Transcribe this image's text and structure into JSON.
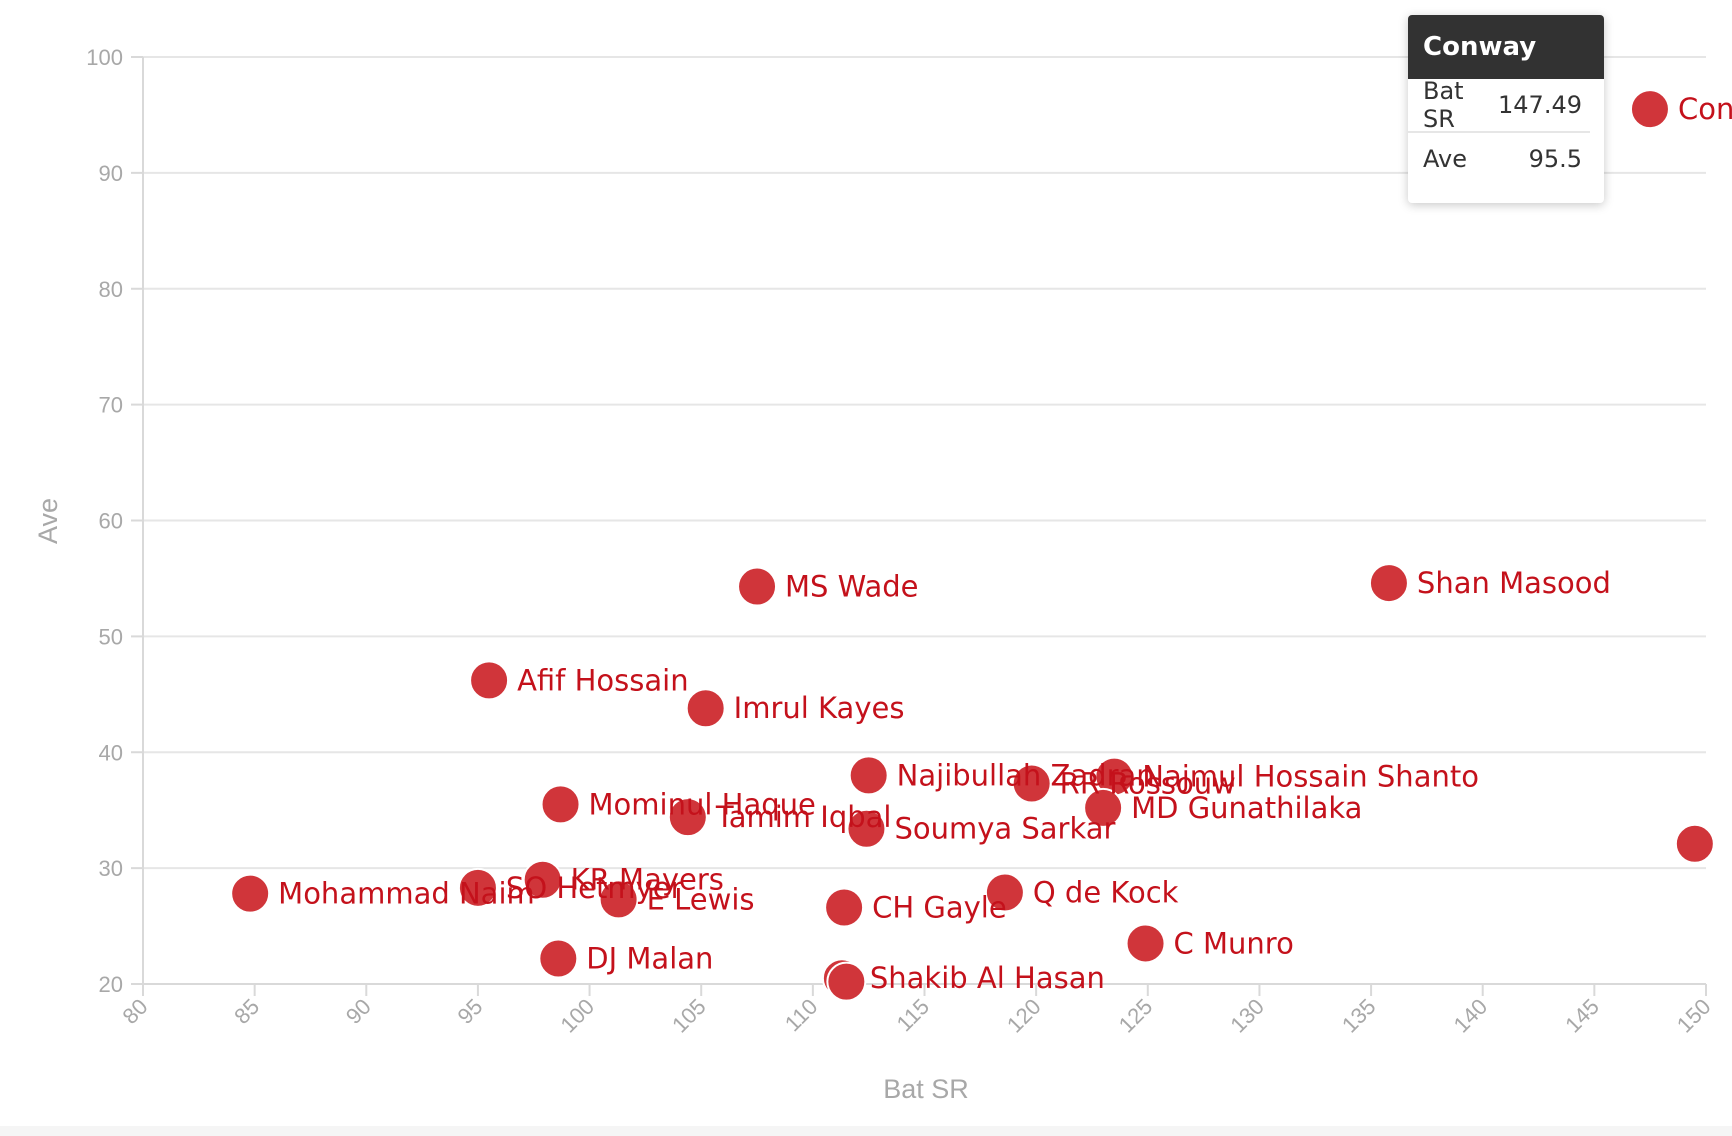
{
  "chart_data": {
    "type": "scatter",
    "xlabel": "Bat SR",
    "ylabel": "Ave",
    "xlim": [
      80,
      150
    ],
    "ylim": [
      20,
      100
    ],
    "xticks": [
      80,
      85,
      90,
      95,
      100,
      105,
      110,
      115,
      120,
      125,
      130,
      135,
      140,
      145,
      150
    ],
    "yticks": [
      20,
      30,
      40,
      50,
      60,
      70,
      80,
      90,
      100
    ],
    "grid": true,
    "marker_color": "#d0353a",
    "label_color": "#c4111b",
    "points": [
      {
        "label": "Conway",
        "x": 147.49,
        "y": 95.5
      },
      {
        "label": "Shan Masood",
        "x": 135.8,
        "y": 54.6
      },
      {
        "label": "MS Wade",
        "x": 107.5,
        "y": 54.3
      },
      {
        "label": "Afif Hossain",
        "x": 95.5,
        "y": 46.2
      },
      {
        "label": "Imrul Kayes",
        "x": 105.2,
        "y": 43.8
      },
      {
        "label": "Najibullah Zadran",
        "x": 112.5,
        "y": 38.0
      },
      {
        "label": "RR Rossouw",
        "x": 119.8,
        "y": 37.3
      },
      {
        "label": "Najmul Hossain Shanto",
        "x": 123.5,
        "y": 37.9
      },
      {
        "label": "MD Gunathilaka",
        "x": 123.0,
        "y": 35.2
      },
      {
        "label": "Mominul Haque",
        "x": 98.7,
        "y": 35.5
      },
      {
        "label": "Tamim Iqbal",
        "x": 104.4,
        "y": 34.4
      },
      {
        "label": "Soumya Sarkar",
        "x": 112.4,
        "y": 33.4
      },
      {
        "label": "",
        "x": 149.5,
        "y": 32.1
      },
      {
        "label": "Mohammad Naim",
        "x": 84.8,
        "y": 27.8
      },
      {
        "label": "SO Hetmyer",
        "x": 95.0,
        "y": 28.3
      },
      {
        "label": "KR Mayers",
        "x": 97.9,
        "y": 29.0
      },
      {
        "label": "E Lewis",
        "x": 101.3,
        "y": 27.3
      },
      {
        "label": "CH Gayle",
        "x": 111.4,
        "y": 26.6
      },
      {
        "label": "Q de Kock",
        "x": 118.6,
        "y": 27.9
      },
      {
        "label": "C Munro",
        "x": 124.9,
        "y": 23.5
      },
      {
        "label": "DJ Malan",
        "x": 98.6,
        "y": 22.2
      },
      {
        "label": "Shakib Al Hasan",
        "x": 111.3,
        "y": 20.5
      },
      {
        "label": "",
        "x": 111.5,
        "y": 20.2
      }
    ]
  },
  "tooltip": {
    "title": "Conway",
    "rows": [
      {
        "label": "Bat SR",
        "value": "147.49"
      },
      {
        "label": "Ave",
        "value": "95.5"
      }
    ]
  }
}
